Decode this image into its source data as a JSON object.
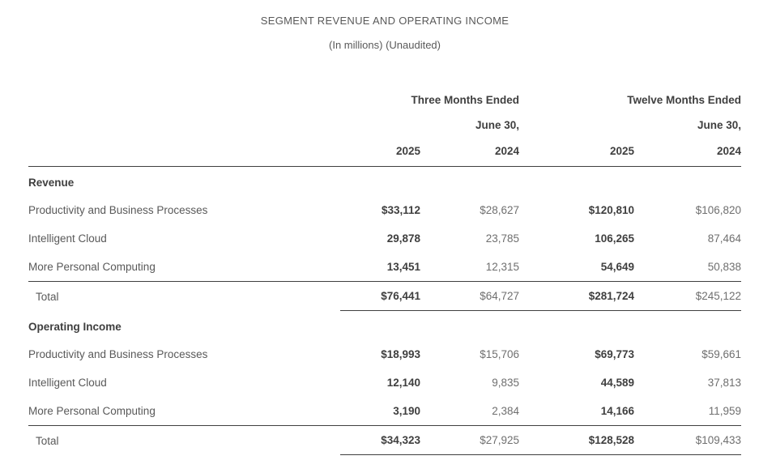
{
  "title": "SEGMENT REVENUE AND OPERATING INCOME",
  "subtitle": "(In millions) (Unaudited)",
  "table": {
    "col_groups": [
      {
        "label": "Three Months Ended",
        "sublabel": "June 30,"
      },
      {
        "label": "Twelve Months Ended",
        "sublabel": "June 30,"
      }
    ],
    "year_columns": [
      "2025",
      "2024",
      "2025",
      "2024"
    ],
    "sections": [
      {
        "header": "Revenue",
        "rows": [
          {
            "label": "Productivity and Business Processes",
            "values": [
              "$33,112",
              "$28,627",
              "$120,810",
              "$106,820"
            ]
          },
          {
            "label": "Intelligent Cloud",
            "values": [
              "29,878",
              "23,785",
              "106,265",
              "87,464"
            ]
          },
          {
            "label": "More Personal Computing",
            "values": [
              "13,451",
              "12,315",
              "54,649",
              "50,838"
            ]
          }
        ],
        "total": {
          "label": "Total",
          "values": [
            "$76,441",
            "$64,727",
            "$281,724",
            "$245,122"
          ]
        }
      },
      {
        "header": "Operating Income",
        "rows": [
          {
            "label": "Productivity and Business Processes",
            "values": [
              "$18,993",
              "$15,706",
              "$69,773",
              "$59,661"
            ]
          },
          {
            "label": "Intelligent Cloud",
            "values": [
              "12,140",
              "9,835",
              "44,589",
              "37,813"
            ]
          },
          {
            "label": "More Personal Computing",
            "values": [
              "3,190",
              "2,384",
              "14,166",
              "11,959"
            ]
          }
        ],
        "total": {
          "label": "Total",
          "values": [
            "$34,323",
            "$27,925",
            "$128,528",
            "$109,433"
          ]
        }
      }
    ]
  },
  "colors": {
    "bold_text": "#3f3f3f",
    "label_text": "#595959",
    "light_text": "#6f6f6f",
    "rule_line": "#3f3f3f",
    "background": "#ffffff"
  }
}
